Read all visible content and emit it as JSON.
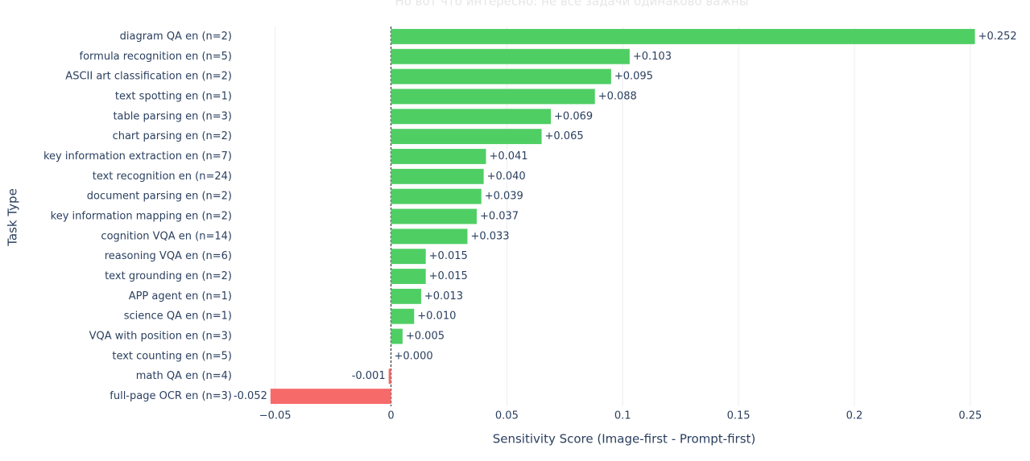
{
  "chart_data": {
    "type": "bar",
    "orientation": "horizontal",
    "title": "Но вот что интересно: не все задачи одинаково важны",
    "xlabel": "Sensitivity Score (Image-first - Prompt-first)",
    "ylabel": "Task Type",
    "categories": [
      "diagram QA en (n=2)",
      "formula recognition en (n=5)",
      "ASCII art classification en (n=2)",
      "text spotting en (n=1)",
      "table parsing en (n=3)",
      "chart parsing en (n=2)",
      "key information extraction en (n=7)",
      "text recognition en (n=24)",
      "document parsing en (n=2)",
      "key information mapping en (n=2)",
      "cognition VQA en (n=14)",
      "reasoning VQA en (n=6)",
      "text grounding en (n=2)",
      "APP agent en (n=1)",
      "science QA en (n=1)",
      "VQA with position en (n=3)",
      "text counting en (n=5)",
      "math QA en (n=4)",
      "full-page OCR en (n=3)"
    ],
    "values": [
      0.252,
      0.103,
      0.095,
      0.088,
      0.069,
      0.065,
      0.041,
      0.04,
      0.039,
      0.037,
      0.033,
      0.015,
      0.015,
      0.013,
      0.01,
      0.005,
      0.0,
      -0.001,
      -0.052
    ],
    "value_labels": [
      "+0.252",
      "+0.103",
      "+0.095",
      "+0.088",
      "+0.069",
      "+0.065",
      "+0.041",
      "+0.040",
      "+0.039",
      "+0.037",
      "+0.033",
      "+0.015",
      "+0.015",
      "+0.013",
      "+0.010",
      "+0.005",
      "+0.000",
      "-0.001",
      "-0.052"
    ],
    "positive_color": "#4fce64",
    "negative_color": "#f76a6a",
    "xlim": [
      -0.053,
      0.265
    ],
    "xticks": [
      {
        "value": -0.05,
        "label": "−0.05"
      },
      0,
      0.05,
      0.1,
      0.15,
      0.2,
      0.25
    ],
    "grid": true
  }
}
